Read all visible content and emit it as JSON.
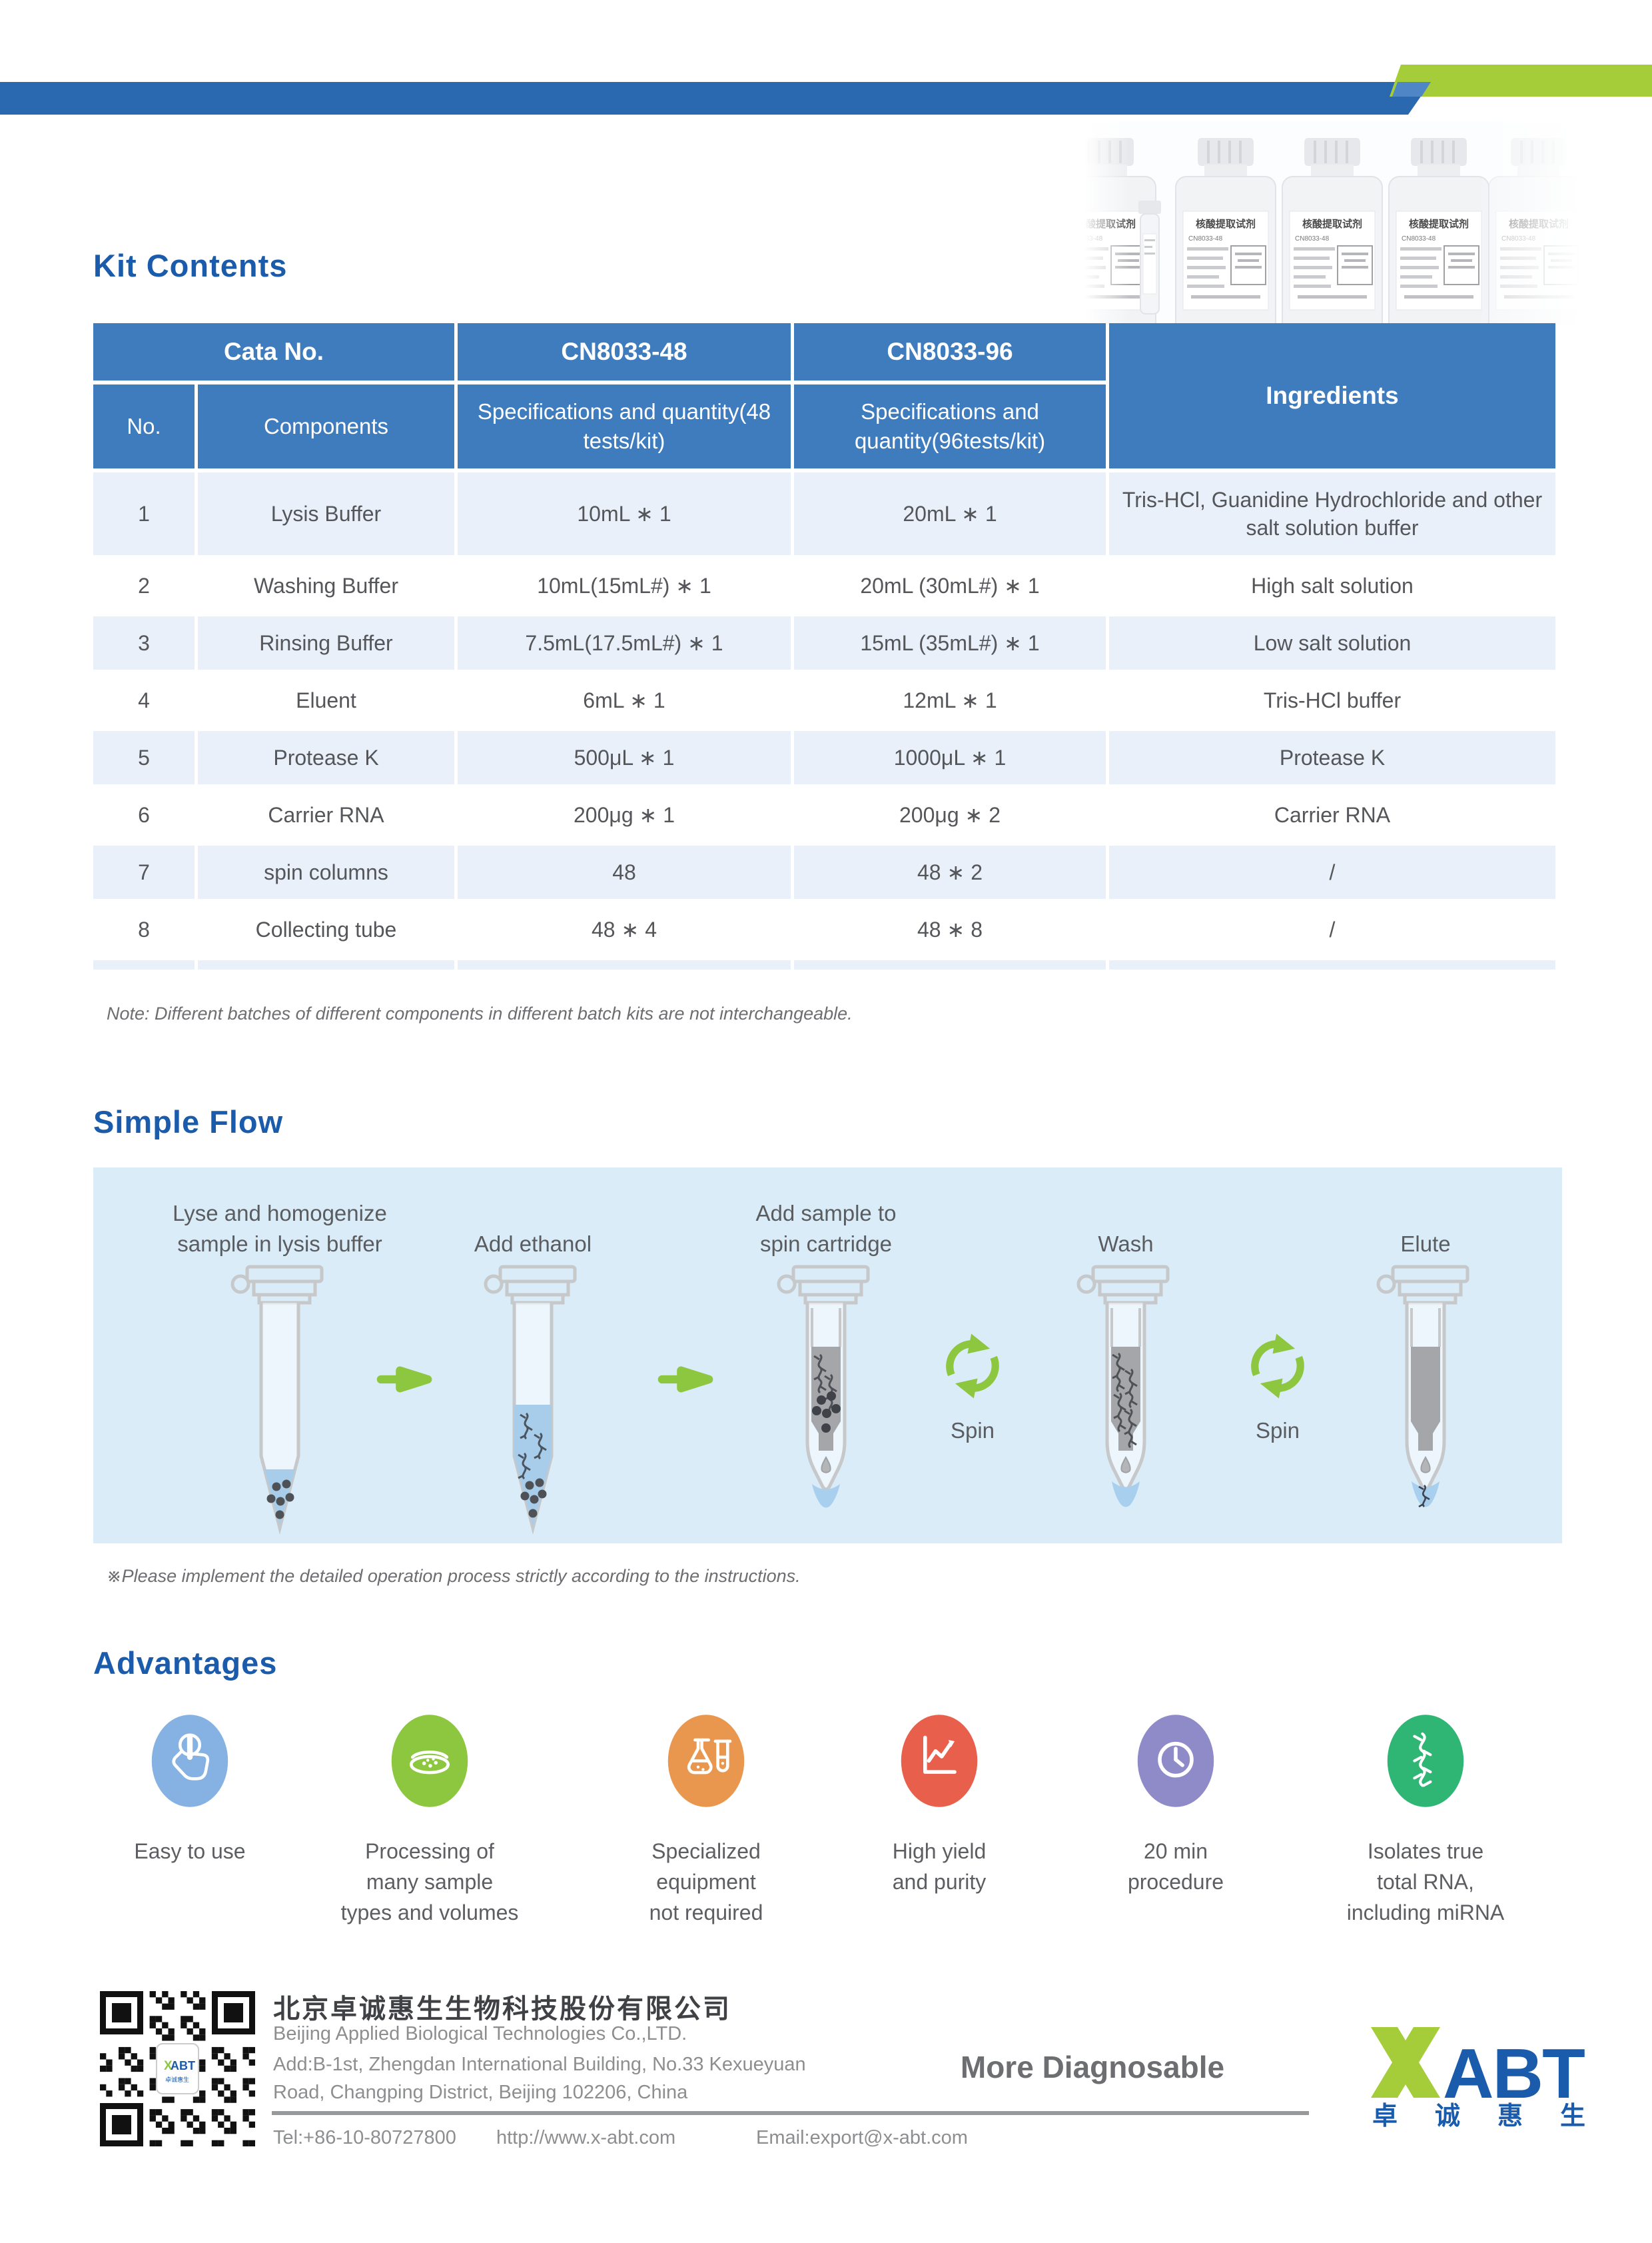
{
  "colors": {
    "top_bar_blue": "#2a69b0",
    "accent_green": "#a5cd39",
    "table_header_blue": "#3e7cbe",
    "table_row_light": "#e9f0f9",
    "flow_panel_blue": "#d9ecf8",
    "title_blue": "#1b5bab",
    "arrow_green": "#8dc63f",
    "logo_blue": "#1b5bab"
  },
  "kit": {
    "title": "Kit Contents",
    "table": {
      "header": {
        "cata_no": "Cata No.",
        "col48": "CN8033-48",
        "col96": "CN8033-96",
        "ingredients": "Ingredients",
        "no": "No.",
        "components": "Components",
        "spec48": "Specifications and quantity(48 tests/kit)",
        "spec96": "Specifications and quantity(96tests/kit)"
      },
      "rows": [
        {
          "no": "1",
          "component": "Lysis Buffer",
          "spec48": "10mL ∗ 1",
          "spec96": "20mL ∗ 1",
          "ingredients": "Tris-HCl, Guanidine Hydrochloride and other salt solution buffer"
        },
        {
          "no": "2",
          "component": "Washing Buffer",
          "spec48": "10mL(15mL#) ∗ 1",
          "spec96": "20mL (30mL#) ∗ 1",
          "ingredients": "High salt solution"
        },
        {
          "no": "3",
          "component": "Rinsing Buffer",
          "spec48": "7.5mL(17.5mL#) ∗ 1",
          "spec96": "15mL (35mL#) ∗ 1",
          "ingredients": "Low salt solution"
        },
        {
          "no": "4",
          "component": "Eluent",
          "spec48": "6mL ∗ 1",
          "spec96": "12mL ∗ 1",
          "ingredients": "Tris-HCl buffer"
        },
        {
          "no": "5",
          "component": "Protease K",
          "spec48": "500μL ∗ 1",
          "spec96": "1000μL ∗ 1",
          "ingredients": "Protease K"
        },
        {
          "no": "6",
          "component": "Carrier RNA",
          "spec48": "200μg ∗ 1",
          "spec96": "200μg ∗ 2",
          "ingredients": "Carrier RNA"
        },
        {
          "no": "7",
          "component": "spin columns",
          "spec48": "48",
          "spec96": "48 ∗ 2",
          "ingredients": "/"
        },
        {
          "no": "8",
          "component": "Collecting tube",
          "spec48": "48 ∗ 4",
          "spec96": "48 ∗ 8",
          "ingredients": "/"
        }
      ],
      "note": "Note: Different batches of different components in different batch kits are not interchangeable."
    }
  },
  "flow": {
    "title": "Simple Flow",
    "steps": [
      {
        "label": "Lyse and homogenize\nsample in lysis buffer"
      },
      {
        "label": "Add ethanol"
      },
      {
        "label": "Add sample to\nspin cartridge"
      },
      {
        "label": "Wash"
      },
      {
        "label": "Elute"
      }
    ],
    "spin_label": "Spin",
    "note": "※Please implement the detailed operation process strictly according to the instructions."
  },
  "advantages": {
    "title": "Advantages",
    "items": [
      {
        "label": "Easy to use",
        "color": "#85b2e3"
      },
      {
        "label": "Processing of\nmany sample\ntypes and volumes",
        "color": "#8dc63f"
      },
      {
        "label": "Specialized\nequipment\nnot required",
        "color": "#e9974f"
      },
      {
        "label": "High yield\nand purity",
        "color": "#e8604c"
      },
      {
        "label": "20 min\nprocedure",
        "color": "#8f8bc8"
      },
      {
        "label": "Isolates true\ntotal RNA,\nincluding miRNA",
        "color": "#2fb574"
      }
    ]
  },
  "products": {
    "bottle_title": "核酸提取试剂",
    "bottle_code": "CN8033-48"
  },
  "footer": {
    "company_cn": "北京卓诚惠生生物科技股份有限公司",
    "company_en": "Beijing Applied Biological Technologies Co.,LTD.",
    "address_line1": "Add:B-1st, Zhengdan International Building, No.33 Kexueyuan",
    "address_line2": "Road,  Changping District, Beijing 102206, China",
    "tel": "Tel:+86-10-80727800",
    "website": "http://www.x-abt.com",
    "email": "Email:export@x-abt.com",
    "slogan": "More Diagnosable",
    "logo_text": "ABT",
    "logo_cn": "卓诚惠生"
  }
}
